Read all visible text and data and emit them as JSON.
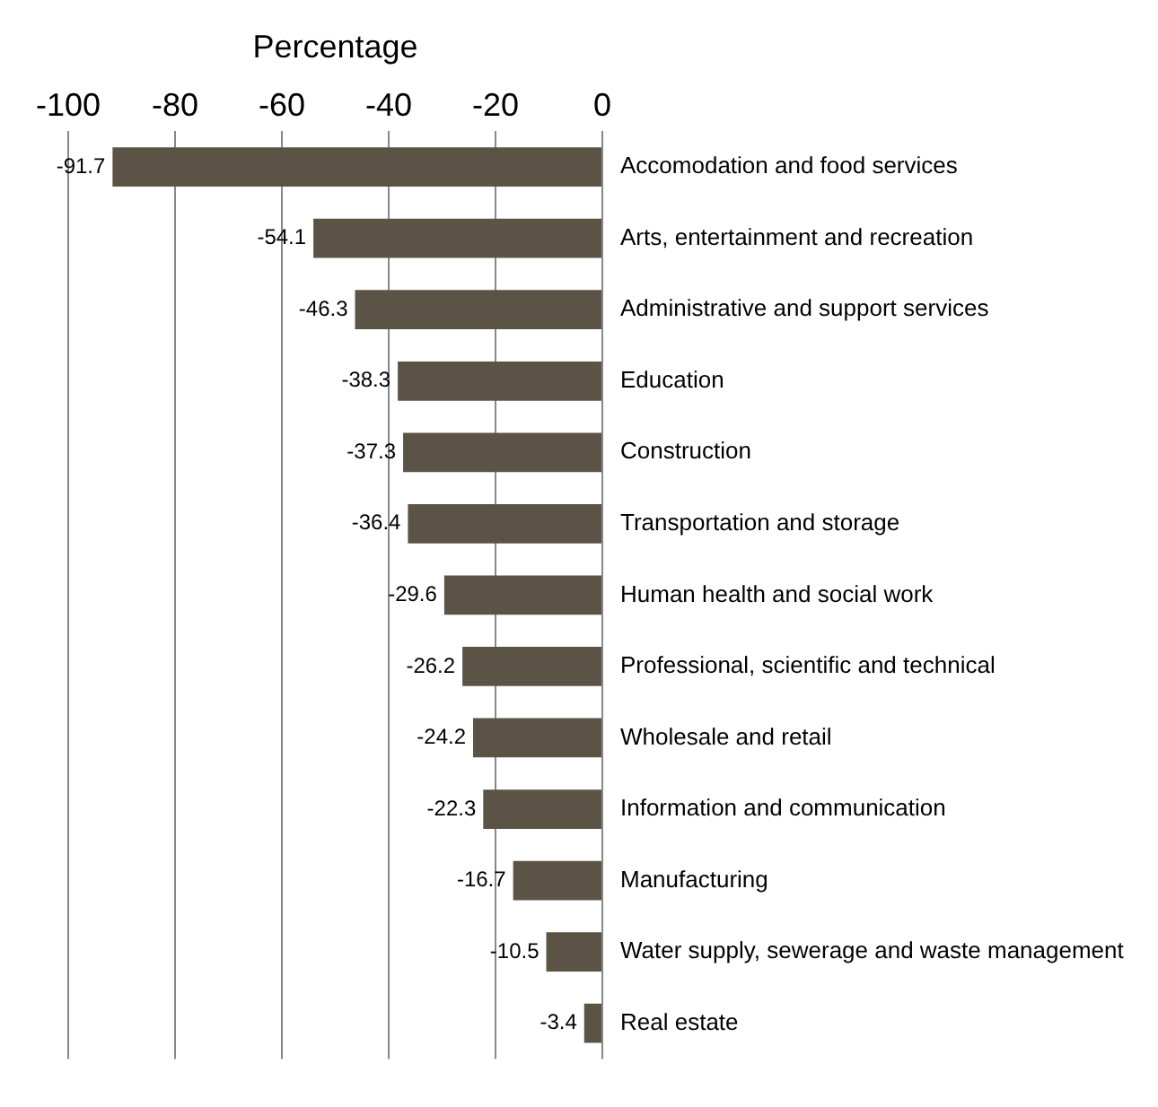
{
  "chart_data": {
    "type": "bar",
    "orientation": "horizontal",
    "xlabel": "Percentage",
    "categories": [
      "Accomodation and food services",
      "Arts, entertainment and recreation",
      "Administrative and support services",
      "Education",
      "Construction",
      "Transportation and storage",
      "Human health and social work",
      "Professional, scientific and technical",
      "Wholesale and retail",
      "Information and communication",
      "Manufacturing",
      "Water supply, sewerage and waste management",
      "Real estate"
    ],
    "values": [
      -91.7,
      -54.1,
      -46.3,
      -38.3,
      -37.3,
      -36.4,
      -29.6,
      -26.2,
      -24.2,
      -22.3,
      -16.7,
      -10.5,
      -3.4
    ],
    "color": "#5b5346",
    "xlim": [
      -100,
      0
    ],
    "xticks": [
      -100,
      -80,
      -60,
      -40,
      -20,
      0
    ],
    "grid": "x",
    "legend": false,
    "data_labels": true
  }
}
